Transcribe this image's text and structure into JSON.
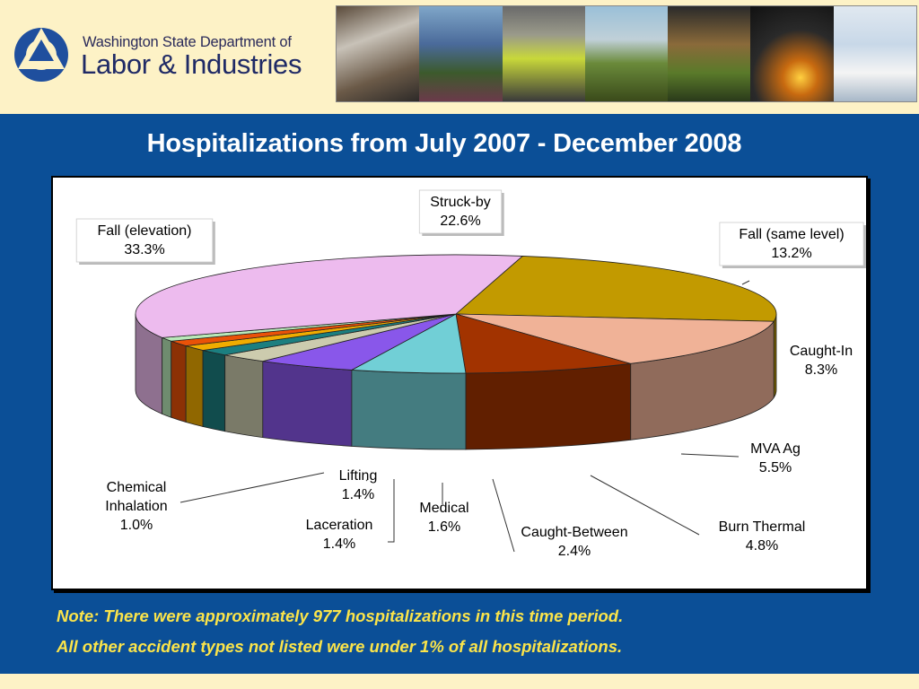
{
  "header": {
    "org_line1": "Washington State Department of",
    "org_line2": "Labor & Industries",
    "photos": [
      "worker-respirator",
      "farmworker-harvest",
      "worker-safety-vest",
      "field-harvest",
      "farmworkers-crouching",
      "welder",
      "lab-technician"
    ]
  },
  "title": "Hospitalizations from July 2007 - December  2008",
  "notes": {
    "line1": "Note: There were approximately 977 hospitalizations in this time period.",
    "line2": "All other accident types not listed were under 1% of all hospitalizations."
  },
  "colors": {
    "header_bg": "#fdf2c6",
    "band_bg": "#0b4f97",
    "note_text": "#fbe44a",
    "title_text": "#ffffff"
  },
  "chart_data": {
    "type": "pie",
    "style": "3d",
    "slices": [
      {
        "label": "Struck-by",
        "value": 22.6,
        "value_label": "22.6%",
        "color": "#c29a00"
      },
      {
        "label": "Fall (same level)",
        "value": 13.2,
        "value_label": "13.2%",
        "color": "#f0b297"
      },
      {
        "label": "Caught-In",
        "value": 8.3,
        "value_label": "8.3%",
        "color": "#a23300"
      },
      {
        "label": "MVA Ag",
        "value": 5.5,
        "value_label": "5.5%",
        "color": "#71cfd6"
      },
      {
        "label": "Burn Thermal",
        "value": 4.8,
        "value_label": "4.8%",
        "color": "#8957ea"
      },
      {
        "label": "Caught-Between",
        "value": 2.4,
        "value_label": "2.4%",
        "color": "#cccbae"
      },
      {
        "label": "Medical",
        "value": 1.6,
        "value_label": "1.6%",
        "color": "#1c7f80"
      },
      {
        "label": "Laceration",
        "value": 1.4,
        "value_label": "1.4%",
        "color": "#f0ac00"
      },
      {
        "label": "Lifting",
        "value": 1.4,
        "value_label": "1.4%",
        "color": "#ea5208"
      },
      {
        "label": "Chemical Inhalation",
        "value": 1.0,
        "value_label": "1.0%",
        "color": "#b9e9b9"
      },
      {
        "label": "Fall (elevation)",
        "value": 33.3,
        "value_label": "33.3%",
        "color": "#edbbee"
      }
    ]
  }
}
